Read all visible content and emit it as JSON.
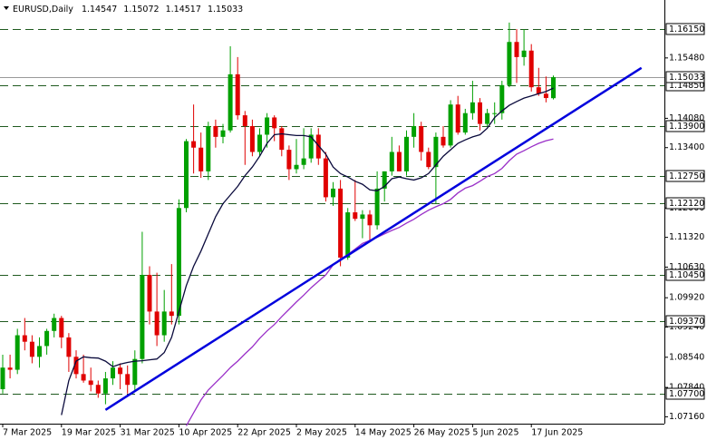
{
  "chart_data": {
    "type": "candlestick",
    "title": "EURUSD,Daily",
    "categories": [
      "7 Mar 2025",
      null,
      null,
      null,
      null,
      null,
      null,
      null,
      "19 Mar 2025",
      null,
      null,
      null,
      null,
      null,
      null,
      null,
      "31 Mar 2025",
      null,
      null,
      null,
      null,
      null,
      null,
      null,
      "10 Apr 2025",
      null,
      null,
      null,
      null,
      null,
      null,
      null,
      "22 Apr 2025",
      null,
      null,
      null,
      null,
      null,
      null,
      null,
      "2 May 2025",
      null,
      null,
      null,
      null,
      null,
      null,
      null,
      "14 May 2025",
      null,
      null,
      null,
      null,
      null,
      null,
      null,
      "26 May 2025",
      null,
      null,
      null,
      null,
      null,
      null,
      null,
      "5 Jun 2025",
      null,
      null,
      null,
      null,
      null,
      null,
      null,
      "17 Jun 2025",
      null,
      null,
      null
    ],
    "open": [
      1.078,
      1.083,
      1.0825,
      1.0905,
      1.089,
      1.0855,
      1.088,
      1.0915,
      1.0945,
      1.09,
      1.0855,
      1.0815,
      1.08,
      1.079,
      1.077,
      1.0805,
      1.083,
      1.0815,
      1.079,
      1.085,
      1.1045,
      1.096,
      1.0905,
      1.096,
      1.095,
      1.12,
      1.1355,
      1.134,
      1.1285,
      1.139,
      1.1365,
      1.138,
      1.151,
      1.1415,
      1.139,
      1.133,
      1.137,
      1.141,
      1.1385,
      1.1335,
      1.129,
      1.13,
      1.1315,
      1.137,
      1.1315,
      1.1225,
      1.1245,
      1.1085,
      1.119,
      1.1175,
      1.1185,
      1.116,
      1.1245,
      1.1285,
      1.133,
      1.1285,
      1.1365,
      1.139,
      1.133,
      1.1295,
      1.1365,
      1.1345,
      1.144,
      1.1375,
      1.142,
      1.1445,
      1.1395,
      1.142,
      1.142,
      1.1485,
      1.1585,
      1.155,
      1.1565,
      1.148,
      1.1465,
      1.14547
    ],
    "high": [
      1.086,
      1.086,
      1.092,
      1.0945,
      1.0905,
      1.09,
      1.092,
      1.0955,
      1.095,
      1.091,
      1.087,
      1.086,
      1.083,
      1.08,
      1.082,
      1.0845,
      1.084,
      1.0835,
      1.087,
      1.1145,
      1.1065,
      1.105,
      1.101,
      1.107,
      1.122,
      1.136,
      1.144,
      1.1375,
      1.14,
      1.1405,
      1.1395,
      1.1575,
      1.155,
      1.1425,
      1.1405,
      1.1385,
      1.142,
      1.1415,
      1.139,
      1.1345,
      1.136,
      1.1385,
      1.1385,
      1.1385,
      1.133,
      1.126,
      1.1265,
      1.12,
      1.1265,
      1.1195,
      1.1195,
      1.1285,
      1.1285,
      1.1365,
      1.1345,
      1.138,
      1.142,
      1.14,
      1.134,
      1.1375,
      1.139,
      1.145,
      1.146,
      1.143,
      1.1495,
      1.1455,
      1.143,
      1.1445,
      1.1495,
      1.163,
      1.1615,
      1.1615,
      1.158,
      1.1525,
      1.1505,
      1.15072
    ],
    "low": [
      1.077,
      1.0805,
      1.0815,
      1.087,
      1.084,
      1.083,
      1.086,
      1.09,
      1.0875,
      1.082,
      1.0805,
      1.0795,
      1.0775,
      1.076,
      1.0745,
      1.079,
      1.078,
      1.077,
      1.0775,
      1.084,
      1.093,
      1.088,
      1.089,
      1.093,
      1.093,
      1.119,
      1.128,
      1.127,
      1.1265,
      1.134,
      1.135,
      1.1375,
      1.1405,
      1.13,
      1.132,
      1.132,
      1.134,
      1.1355,
      1.132,
      1.1265,
      1.128,
      1.129,
      1.1305,
      1.13,
      1.1215,
      1.1205,
      1.1065,
      1.108,
      1.117,
      1.113,
      1.1125,
      1.115,
      1.1215,
      1.1275,
      1.1285,
      1.1275,
      1.134,
      1.131,
      1.129,
      1.121,
      1.134,
      1.134,
      1.137,
      1.137,
      1.1405,
      1.138,
      1.139,
      1.1395,
      1.1405,
      1.148,
      1.149,
      1.153,
      1.147,
      1.146,
      1.1445,
      1.14517
    ],
    "close": [
      1.083,
      1.0825,
      1.0905,
      1.089,
      1.0855,
      1.088,
      1.0915,
      1.0945,
      1.09,
      1.0855,
      1.0815,
      1.08,
      1.079,
      1.077,
      1.0805,
      1.083,
      1.0815,
      1.079,
      1.085,
      1.1045,
      1.096,
      1.0905,
      1.096,
      1.095,
      1.12,
      1.1355,
      1.134,
      1.1285,
      1.139,
      1.1365,
      1.138,
      1.151,
      1.1415,
      1.139,
      1.133,
      1.137,
      1.141,
      1.1385,
      1.1335,
      1.129,
      1.13,
      1.1315,
      1.137,
      1.1315,
      1.1225,
      1.1245,
      1.1085,
      1.119,
      1.1175,
      1.1185,
      1.116,
      1.1245,
      1.1285,
      1.133,
      1.1285,
      1.1365,
      1.139,
      1.133,
      1.1295,
      1.1365,
      1.1345,
      1.144,
      1.1375,
      1.142,
      1.1445,
      1.1395,
      1.142,
      1.142,
      1.1485,
      1.1585,
      1.155,
      1.1565,
      1.148,
      1.1465,
      1.1455,
      1.15033
    ],
    "up_color": "#00a000",
    "down_color": "#e00000",
    "series": [
      {
        "color": "#0a0a3c",
        "values": [
          null,
          null,
          null,
          null,
          null,
          null,
          null,
          null,
          1.072,
          1.08,
          1.0845,
          1.0855,
          1.0853,
          1.0852,
          1.0845,
          1.0832,
          1.0838,
          1.0842,
          1.0845,
          1.0846,
          1.0848,
          1.085,
          1.0865,
          1.09,
          1.096,
          1.102,
          1.1065,
          1.11,
          1.114,
          1.118,
          1.121,
          1.123,
          1.125,
          1.1275,
          1.1295,
          1.132,
          1.135,
          1.137,
          1.1372,
          1.137,
          1.1368,
          1.1368,
          1.1365,
          1.1345,
          1.1325,
          1.1295,
          1.128,
          1.1272,
          1.1262,
          1.1255,
          1.1242,
          1.124,
          1.125,
          1.1268,
          1.1272,
          1.1268,
          1.1265,
          1.127,
          1.128,
          1.13,
          1.132,
          1.1335,
          1.135,
          1.1358,
          1.1365,
          1.137,
          1.1385,
          1.141,
          1.1425,
          1.1438,
          1.1447,
          1.1455,
          1.146,
          1.1465,
          1.147,
          1.1478
        ]
      },
      {
        "color": "#9a30c8",
        "values": [
          null,
          null,
          null,
          null,
          null,
          null,
          null,
          null,
          null,
          null,
          null,
          null,
          null,
          null,
          null,
          null,
          null,
          null,
          null,
          null,
          null,
          null,
          null,
          null,
          null,
          1.0695,
          1.0725,
          1.0755,
          1.0778,
          1.0795,
          1.0812,
          1.083,
          1.0845,
          1.0862,
          1.0878,
          1.0898,
          1.0915,
          1.093,
          1.0948,
          1.0965,
          1.0982,
          1.0998,
          1.1015,
          1.103,
          1.1045,
          1.1068,
          1.1082,
          1.1092,
          1.1105,
          1.1118,
          1.1125,
          1.1132,
          1.114,
          1.1148,
          1.1155,
          1.1165,
          1.1174,
          1.1185,
          1.1195,
          1.1203,
          1.121,
          1.122,
          1.1235,
          1.1246,
          1.1252,
          1.1262,
          1.1273,
          1.128,
          1.1292,
          1.131,
          1.1325,
          1.1333,
          1.1342,
          1.135,
          1.1356,
          1.136
        ]
      }
    ],
    "trendline": {
      "color": "#0000dd",
      "x": [
        14,
        87
      ],
      "values": [
        1.0732,
        1.1525
      ]
    },
    "levels": [
      {
        "value": 1.1615,
        "label": "1.16150"
      },
      {
        "value": 1.1485,
        "label": "1.14850"
      },
      {
        "value": 1.139,
        "label": "1.13900"
      },
      {
        "value": 1.1275,
        "label": "1.12750"
      },
      {
        "value": 1.1212,
        "label": "1.12120"
      },
      {
        "value": 1.1045,
        "label": "1.10450"
      },
      {
        "value": 1.0937,
        "label": "1.09370"
      },
      {
        "value": 1.077,
        "label": "1.07700"
      }
    ],
    "level_color": "#1f5a1f",
    "ylim": [
      1.06937,
      1.16823
    ],
    "yticks": [
      {
        "value": 1.1548,
        "label": "1.15480"
      },
      {
        "value": 1.1408,
        "label": "1.14080"
      },
      {
        "value": 1.134,
        "label": "1.13400"
      },
      {
        "value": 1.12,
        "label": "1.12000"
      },
      {
        "value": 1.1132,
        "label": "1.11320"
      },
      {
        "value": 1.1063,
        "label": "1.10630"
      },
      {
        "value": 1.0992,
        "label": "1.09920"
      },
      {
        "value": 1.0924,
        "label": "1.09240"
      },
      {
        "value": 1.0854,
        "label": "1.08540"
      },
      {
        "value": 1.0784,
        "label": "1.07840"
      },
      {
        "value": 1.0716,
        "label": "1.07160"
      }
    ]
  }
}
